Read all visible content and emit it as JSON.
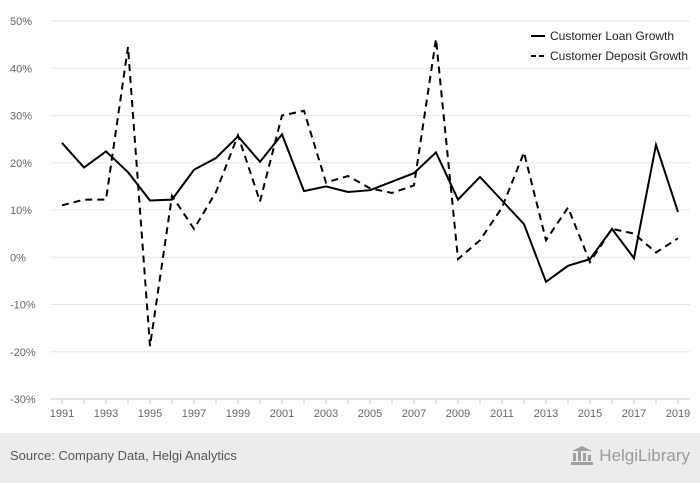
{
  "chart_data": {
    "type": "line",
    "x": [
      "1991",
      "1992",
      "1993",
      "1994",
      "1995",
      "1996",
      "1997",
      "1998",
      "1999",
      "2000",
      "2001",
      "2002",
      "2003",
      "2004",
      "2005",
      "2006",
      "2007",
      "2008",
      "2009",
      "2010",
      "2011",
      "2012",
      "2013",
      "2014",
      "2015",
      "2016",
      "2017",
      "2018",
      "2019"
    ],
    "x_tick_labels": [
      "1991",
      "1993",
      "1995",
      "1997",
      "1999",
      "2001",
      "2003",
      "2005",
      "2007",
      "2009",
      "2011",
      "2013",
      "2015",
      "2017",
      "2019"
    ],
    "y_tick_labels": [
      "50%",
      "40%",
      "30%",
      "20%",
      "10%",
      "0%",
      "-10%",
      "-20%",
      "-30%"
    ],
    "ylim": [
      -30,
      50
    ],
    "grid": true,
    "legend_position": "top-right",
    "series": [
      {
        "name": "Customer Loan Growth",
        "style": "solid",
        "color": "#000000",
        "values": [
          24.2,
          19.0,
          22.4,
          18.0,
          12.0,
          12.2,
          18.5,
          21.0,
          25.6,
          20.2,
          26.0,
          14.0,
          15.0,
          13.8,
          14.2,
          16.0,
          17.8,
          22.2,
          12.2,
          17.0,
          12.0,
          7.0,
          -5.2,
          -1.8,
          -0.4,
          6.0,
          -0.2,
          23.8,
          9.6
        ]
      },
      {
        "name": "Customer Deposit Growth",
        "style": "dashed",
        "color": "#000000",
        "values": [
          11.0,
          12.2,
          12.2,
          44.5,
          -18.8,
          13.0,
          6.0,
          13.8,
          25.8,
          11.8,
          30.0,
          31.0,
          15.8,
          17.2,
          14.6,
          13.6,
          15.2,
          46.2,
          -0.4,
          3.6,
          10.5,
          22.2,
          3.6,
          10.5,
          -1.0,
          6.0,
          5.0,
          1.0,
          4.0
        ]
      }
    ]
  },
  "footer": {
    "source": "Source: Company Data, Helgi Analytics",
    "brand": "HelgiLibrary"
  }
}
